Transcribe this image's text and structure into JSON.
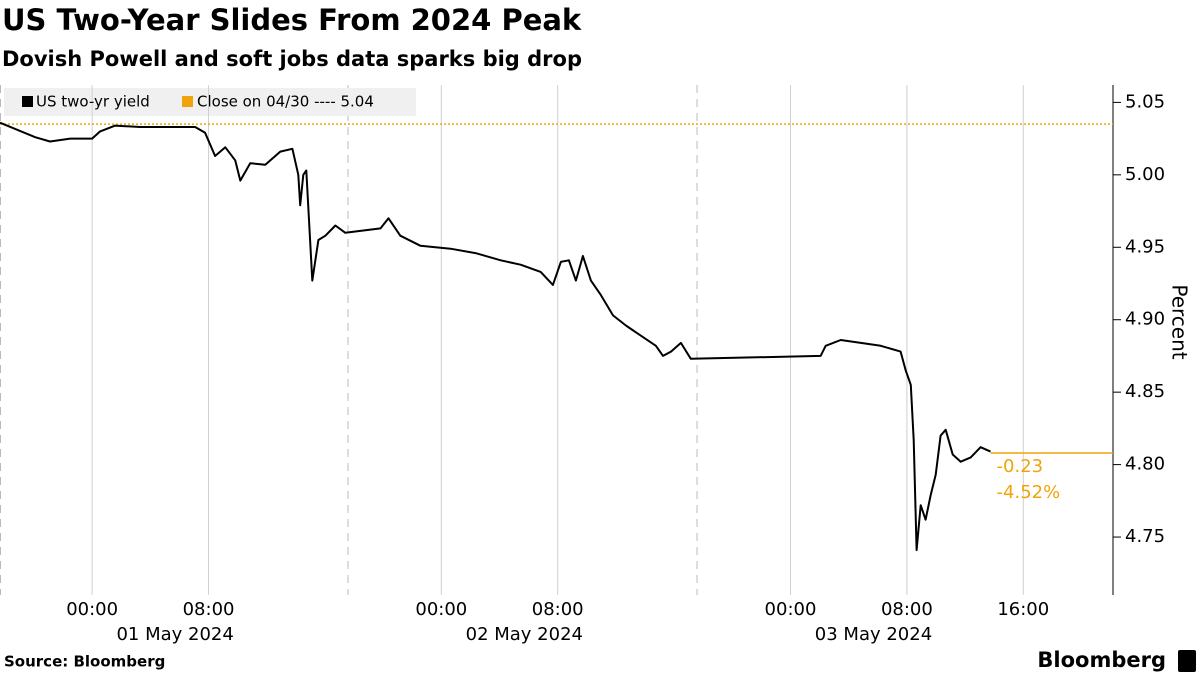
{
  "chart_data": {
    "type": "line",
    "title": "US Two-Year Slides From 2024 Peak",
    "subtitle": "Dovish Powell and soft jobs data sparks big drop",
    "y_label": "Percent",
    "source": "Source: Bloomberg",
    "brand": "Bloomberg",
    "x": [
      "2024-04-30T17:40",
      "2024-04-30T20:05",
      "2024-04-30T21:06",
      "2024-04-30T22:30",
      "2024-05-01T00:00",
      "2024-05-01T00:33",
      "2024-05-01T01:35",
      "2024-05-01T03:18",
      "2024-05-01T05:01",
      "2024-05-01T07:05",
      "2024-05-01T07:46",
      "2024-05-01T08:27",
      "2024-05-01T09:09",
      "2024-05-01T09:50",
      "2024-05-01T10:11",
      "2024-05-01T10:52",
      "2024-05-01T11:54",
      "2024-05-01T12:56",
      "2024-05-01T13:46",
      "2024-05-01T14:10",
      "2024-05-01T14:18",
      "2024-05-01T14:31",
      "2024-05-01T14:43",
      "2024-05-01T15:08",
      "2024-05-01T15:33",
      "2024-05-01T16:02",
      "2024-05-01T16:43",
      "2024-05-01T17:24",
      "2024-05-01T19:49",
      "2024-05-01T20:22",
      "2024-05-01T21:11",
      "2024-05-01T22:34",
      "2024-05-02T00:38",
      "2024-05-02T02:21",
      "2024-05-02T04:05",
      "2024-05-02T05:27",
      "2024-05-02T06:50",
      "2024-05-02T07:40",
      "2024-05-02T08:13",
      "2024-05-02T08:46",
      "2024-05-02T09:15",
      "2024-05-02T09:44",
      "2024-05-02T10:17",
      "2024-05-02T10:58",
      "2024-05-02T11:48",
      "2024-05-02T12:41",
      "2024-05-02T13:43",
      "2024-05-02T14:45",
      "2024-05-02T15:14",
      "2024-05-02T15:47",
      "2024-05-02T16:28",
      "2024-05-02T17:09",
      "2024-05-03T02:04",
      "2024-05-03T02:25",
      "2024-05-03T03:27",
      "2024-05-03T04:50",
      "2024-05-03T06:12",
      "2024-05-03T07:34",
      "2024-05-03T07:55",
      "2024-05-03T08:16",
      "2024-05-03T08:28",
      "2024-05-03T08:40",
      "2024-05-03T08:57",
      "2024-05-03T09:17",
      "2024-05-03T09:38",
      "2024-05-03T09:59",
      "2024-05-03T10:19",
      "2024-05-03T10:40",
      "2024-05-03T11:09",
      "2024-05-03T11:42",
      "2024-05-03T12:23",
      "2024-05-03T13:04",
      "2024-05-03T13:45"
    ],
    "series": [
      {
        "name": "US two-yr yield",
        "color": "#000000",
        "values": [
          5.036,
          5.026,
          5.023,
          5.025,
          5.025,
          5.03,
          5.034,
          5.033,
          5.033,
          5.033,
          5.029,
          5.013,
          5.019,
          5.01,
          4.996,
          5.008,
          5.007,
          5.016,
          5.018,
          5.0,
          4.979,
          5.0,
          5.003,
          4.927,
          4.955,
          4.958,
          4.965,
          4.96,
          4.963,
          4.97,
          4.958,
          4.951,
          4.949,
          4.946,
          4.941,
          4.938,
          4.933,
          4.924,
          4.94,
          4.941,
          4.927,
          4.944,
          4.927,
          4.917,
          4.903,
          4.896,
          4.889,
          4.882,
          4.875,
          4.878,
          4.884,
          4.873,
          4.875,
          4.882,
          4.886,
          4.884,
          4.882,
          4.878,
          4.865,
          4.855,
          4.817,
          4.741,
          4.772,
          4.762,
          4.779,
          4.793,
          4.82,
          4.824,
          4.807,
          4.802,
          4.805,
          4.812,
          4.809
        ]
      }
    ],
    "reference": {
      "name": "Close on 04/30 ---- 5.04",
      "value": 5.035,
      "color": "#f0a30a"
    },
    "last_value_line": {
      "value": 4.808,
      "color": "#f0a30a"
    },
    "annotations": [
      "-0.23",
      "-4.52%"
    ],
    "xlim": [
      "2024-04-30T17:40",
      "2024-05-03T22:10"
    ],
    "xticks": [
      {
        "value": "2024-05-01T00:00",
        "label": "00:00"
      },
      {
        "value": "2024-05-01T08:00",
        "label": "08:00"
      },
      {
        "value": "2024-05-02T00:00",
        "label": "00:00"
      },
      {
        "value": "2024-05-02T08:00",
        "label": "08:00"
      },
      {
        "value": "2024-05-03T00:00",
        "label": "00:00"
      },
      {
        "value": "2024-05-03T08:00",
        "label": "08:00"
      },
      {
        "value": "2024-05-03T16:00",
        "label": "16:00"
      }
    ],
    "x_date_labels": [
      {
        "value": "2024-05-01T00:00",
        "label": "01 May 2024"
      },
      {
        "value": "2024-05-02T00:00",
        "label": "02 May 2024"
      },
      {
        "value": "2024-05-03T00:00",
        "label": "03 May 2024"
      }
    ],
    "ylim": [
      4.71,
      5.062
    ],
    "yticks": [
      {
        "value": 4.75,
        "label": "4.75"
      },
      {
        "value": 4.8,
        "label": "4.80"
      },
      4.85,
      {
        "value": 4.9,
        "label": "4.90"
      },
      4.95,
      {
        "value": 5,
        "label": "5.00"
      },
      5.05
    ],
    "grid": true
  }
}
